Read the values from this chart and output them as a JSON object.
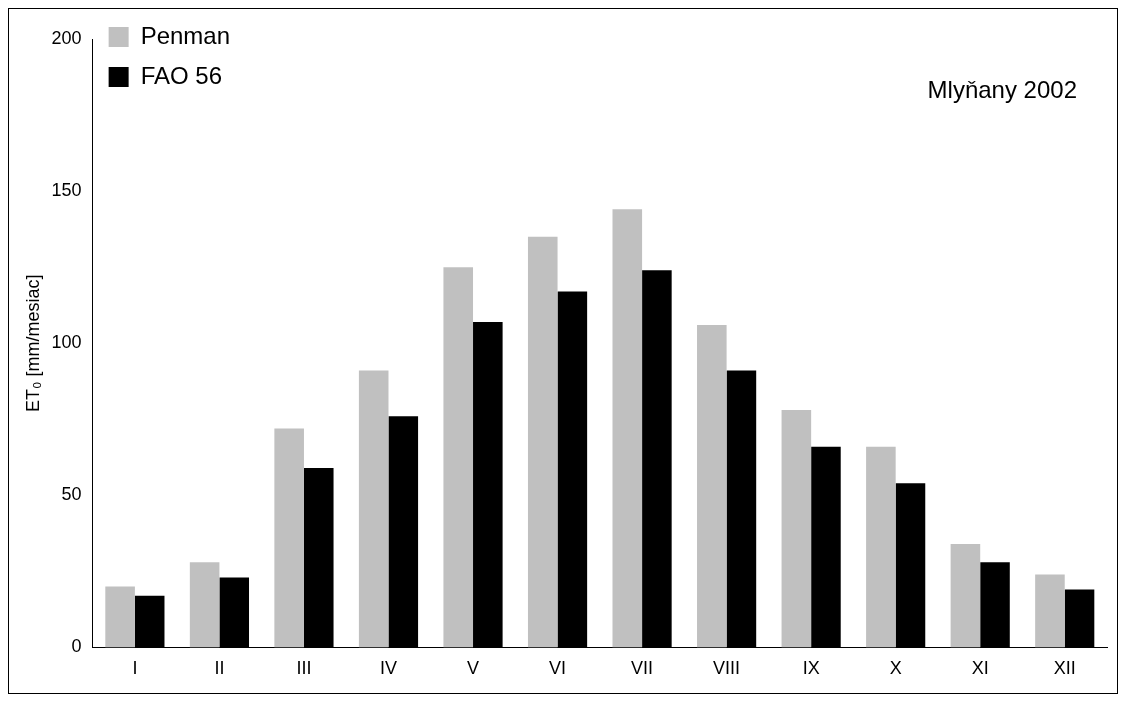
{
  "chart_data": {
    "type": "bar",
    "ylabel": "ET₀ [mm/mesiac]",
    "categories": [
      "I",
      "II",
      "III",
      "IV",
      "V",
      "VI",
      "VII",
      "VIII",
      "IX",
      "X",
      "XI",
      "XII"
    ],
    "series": [
      {
        "name": "Penman",
        "color": "#c0c0c0",
        "values": [
          20,
          28,
          72,
          91,
          125,
          135,
          144,
          106,
          78,
          66,
          34,
          24
        ]
      },
      {
        "name": "FAO 56",
        "color": "#000000",
        "values": [
          17,
          23,
          59,
          76,
          107,
          117,
          124,
          91,
          66,
          54,
          28,
          19
        ]
      }
    ],
    "ylim": [
      0,
      200
    ],
    "yticks": [
      0,
      50,
      100,
      150,
      200
    ],
    "grid": false,
    "legend": "top left",
    "annotations": [
      "Mlyňany 2002"
    ]
  }
}
